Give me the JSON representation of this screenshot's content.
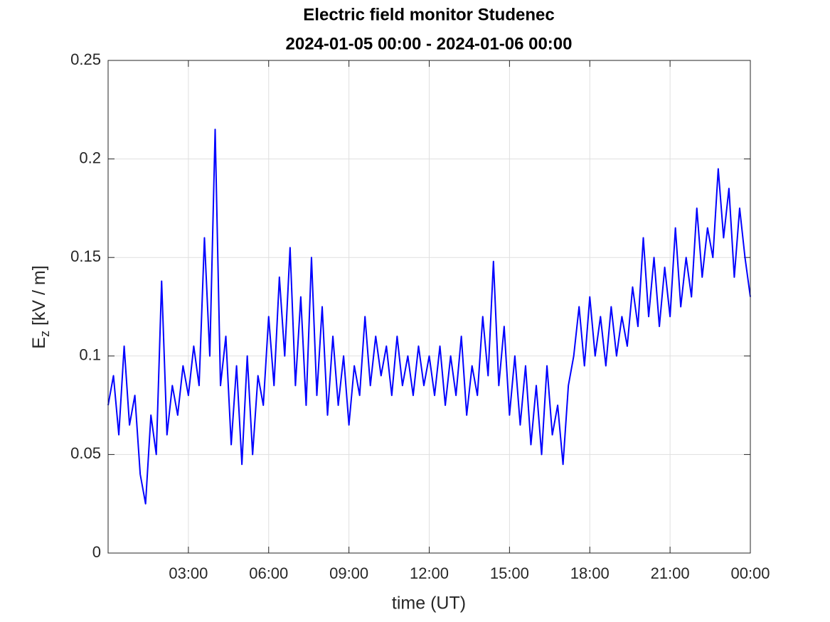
{
  "chart_data": {
    "type": "line",
    "title": "Electric field monitor Studenec",
    "subtitle": "2024-01-05 00:00 - 2024-01-06 00:00",
    "xlabel": "time (UT)",
    "ylabel": {
      "main": "E",
      "sub": "z",
      "rest": " [kV / m]"
    },
    "x": [
      0,
      0.2,
      0.4,
      0.6,
      0.8,
      1,
      1.2,
      1.4,
      1.6,
      1.8,
      2,
      2.2,
      2.4,
      2.6,
      2.8,
      3,
      3.2,
      3.4,
      3.6,
      3.8,
      4,
      4.2,
      4.4,
      4.6,
      4.8,
      5,
      5.2,
      5.4,
      5.6,
      5.8,
      6,
      6.2,
      6.4,
      6.6,
      6.8,
      7,
      7.2,
      7.4,
      7.6,
      7.8,
      8,
      8.2,
      8.4,
      8.6,
      8.8,
      9,
      9.2,
      9.4,
      9.6,
      9.8,
      10,
      10.2,
      10.4,
      10.6,
      10.8,
      11,
      11.2,
      11.4,
      11.6,
      11.8,
      12,
      12.2,
      12.4,
      12.6,
      12.8,
      13,
      13.2,
      13.4,
      13.6,
      13.8,
      14,
      14.2,
      14.4,
      14.6,
      14.8,
      15,
      15.2,
      15.4,
      15.6,
      15.8,
      16,
      16.2,
      16.4,
      16.6,
      16.8,
      17,
      17.2,
      17.4,
      17.6,
      17.8,
      18,
      18.2,
      18.4,
      18.6,
      18.8,
      19,
      19.2,
      19.4,
      19.6,
      19.8,
      20,
      20.2,
      20.4,
      20.6,
      20.8,
      21,
      21.2,
      21.4,
      21.6,
      21.8,
      22,
      22.2,
      22.4,
      22.6,
      22.8,
      23,
      23.2,
      23.4,
      23.6,
      23.8,
      24
    ],
    "series": [
      {
        "name": "Ez",
        "color": "#0000ff",
        "values": [
          0.075,
          0.09,
          0.06,
          0.105,
          0.065,
          0.08,
          0.04,
          0.025,
          0.07,
          0.05,
          0.138,
          0.06,
          0.085,
          0.07,
          0.095,
          0.08,
          0.105,
          0.085,
          0.16,
          0.1,
          0.215,
          0.085,
          0.11,
          0.055,
          0.095,
          0.045,
          0.1,
          0.05,
          0.09,
          0.075,
          0.12,
          0.085,
          0.14,
          0.1,
          0.155,
          0.085,
          0.13,
          0.075,
          0.15,
          0.08,
          0.125,
          0.07,
          0.11,
          0.075,
          0.1,
          0.065,
          0.095,
          0.08,
          0.12,
          0.085,
          0.11,
          0.09,
          0.105,
          0.08,
          0.11,
          0.085,
          0.1,
          0.08,
          0.105,
          0.085,
          0.1,
          0.08,
          0.105,
          0.075,
          0.1,
          0.08,
          0.11,
          0.07,
          0.095,
          0.08,
          0.12,
          0.09,
          0.148,
          0.085,
          0.115,
          0.07,
          0.1,
          0.065,
          0.095,
          0.055,
          0.085,
          0.05,
          0.095,
          0.06,
          0.075,
          0.045,
          0.085,
          0.1,
          0.125,
          0.095,
          0.13,
          0.1,
          0.12,
          0.095,
          0.125,
          0.1,
          0.12,
          0.105,
          0.135,
          0.115,
          0.16,
          0.12,
          0.15,
          0.115,
          0.145,
          0.12,
          0.165,
          0.125,
          0.15,
          0.13,
          0.175,
          0.14,
          0.165,
          0.15,
          0.195,
          0.16,
          0.185,
          0.14,
          0.175,
          0.15,
          0.13
        ]
      }
    ],
    "xlim": [
      0,
      24
    ],
    "xticks": [
      {
        "value": 3,
        "label": "03:00"
      },
      {
        "value": 6,
        "label": "06:00"
      },
      {
        "value": 9,
        "label": "09:00"
      },
      {
        "value": 12,
        "label": "12:00"
      },
      {
        "value": 15,
        "label": "15:00"
      },
      {
        "value": 18,
        "label": "18:00"
      },
      {
        "value": 21,
        "label": "21:00"
      },
      {
        "value": 24,
        "label": "00:00"
      }
    ],
    "ylim": [
      0,
      0.25
    ],
    "yticks": [
      0,
      0.05,
      0.1,
      0.15,
      0.2,
      0.25
    ],
    "grid": true
  }
}
